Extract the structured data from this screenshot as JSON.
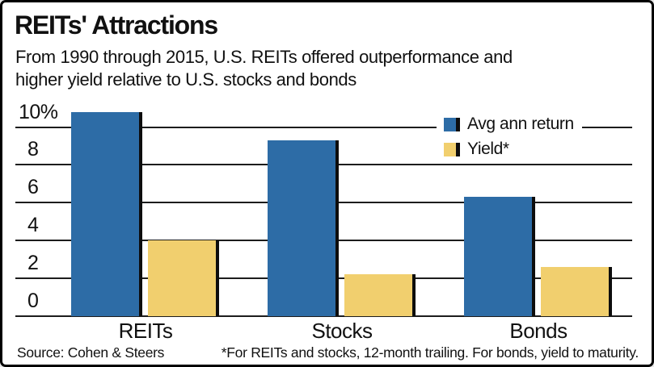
{
  "header": {
    "title": "REITs' Attractions",
    "subtitle_lines": [
      "From 1990 through 2015, U.S. REITs offered outperformance and",
      "higher yield relative to U.S. stocks and bonds"
    ]
  },
  "legend": {
    "items": [
      {
        "label": "Avg ann return",
        "color": "#2d6ca6"
      },
      {
        "label": "Yield*",
        "color": "#f1cf6e"
      }
    ]
  },
  "chart_data": {
    "type": "bar",
    "title": "REITs' Attractions",
    "subtitle": "From 1990 through 2015, U.S. REITs offered outperformance and higher yield relative to U.S. stocks and bonds",
    "categories": [
      "REITs",
      "Stocks",
      "Bonds"
    ],
    "series": [
      {
        "name": "Avg ann return",
        "color": "#2d6ca6",
        "values": [
          10.8,
          9.3,
          6.3
        ]
      },
      {
        "name": "Yield*",
        "color": "#f1cf6e",
        "values": [
          4.0,
          2.2,
          2.6
        ]
      }
    ],
    "unit": "%",
    "xlabel": "",
    "ylabel": "",
    "ylim": [
      0,
      11.2
    ],
    "y_ticks": [
      {
        "value": 0,
        "label": "0"
      },
      {
        "value": 2,
        "label": "2"
      },
      {
        "value": 4,
        "label": "4"
      },
      {
        "value": 6,
        "label": "6"
      },
      {
        "value": 8,
        "label": "8"
      },
      {
        "value": 10,
        "label": "10%"
      }
    ],
    "grid": true,
    "legend_position": "top-right"
  },
  "footer": {
    "source": "Source: Cohen & Steers",
    "footnote": "*For REITs and stocks, 12-month trailing. For bonds, yield to maturity."
  },
  "colors": {
    "bar_blue": "#2d6ca6",
    "bar_yellow": "#f1cf6e",
    "bar_edge": "#0d0d0d",
    "gridline": "#1c1c1c",
    "text": "#111111",
    "background": "#ffffff",
    "border": "#000000"
  }
}
